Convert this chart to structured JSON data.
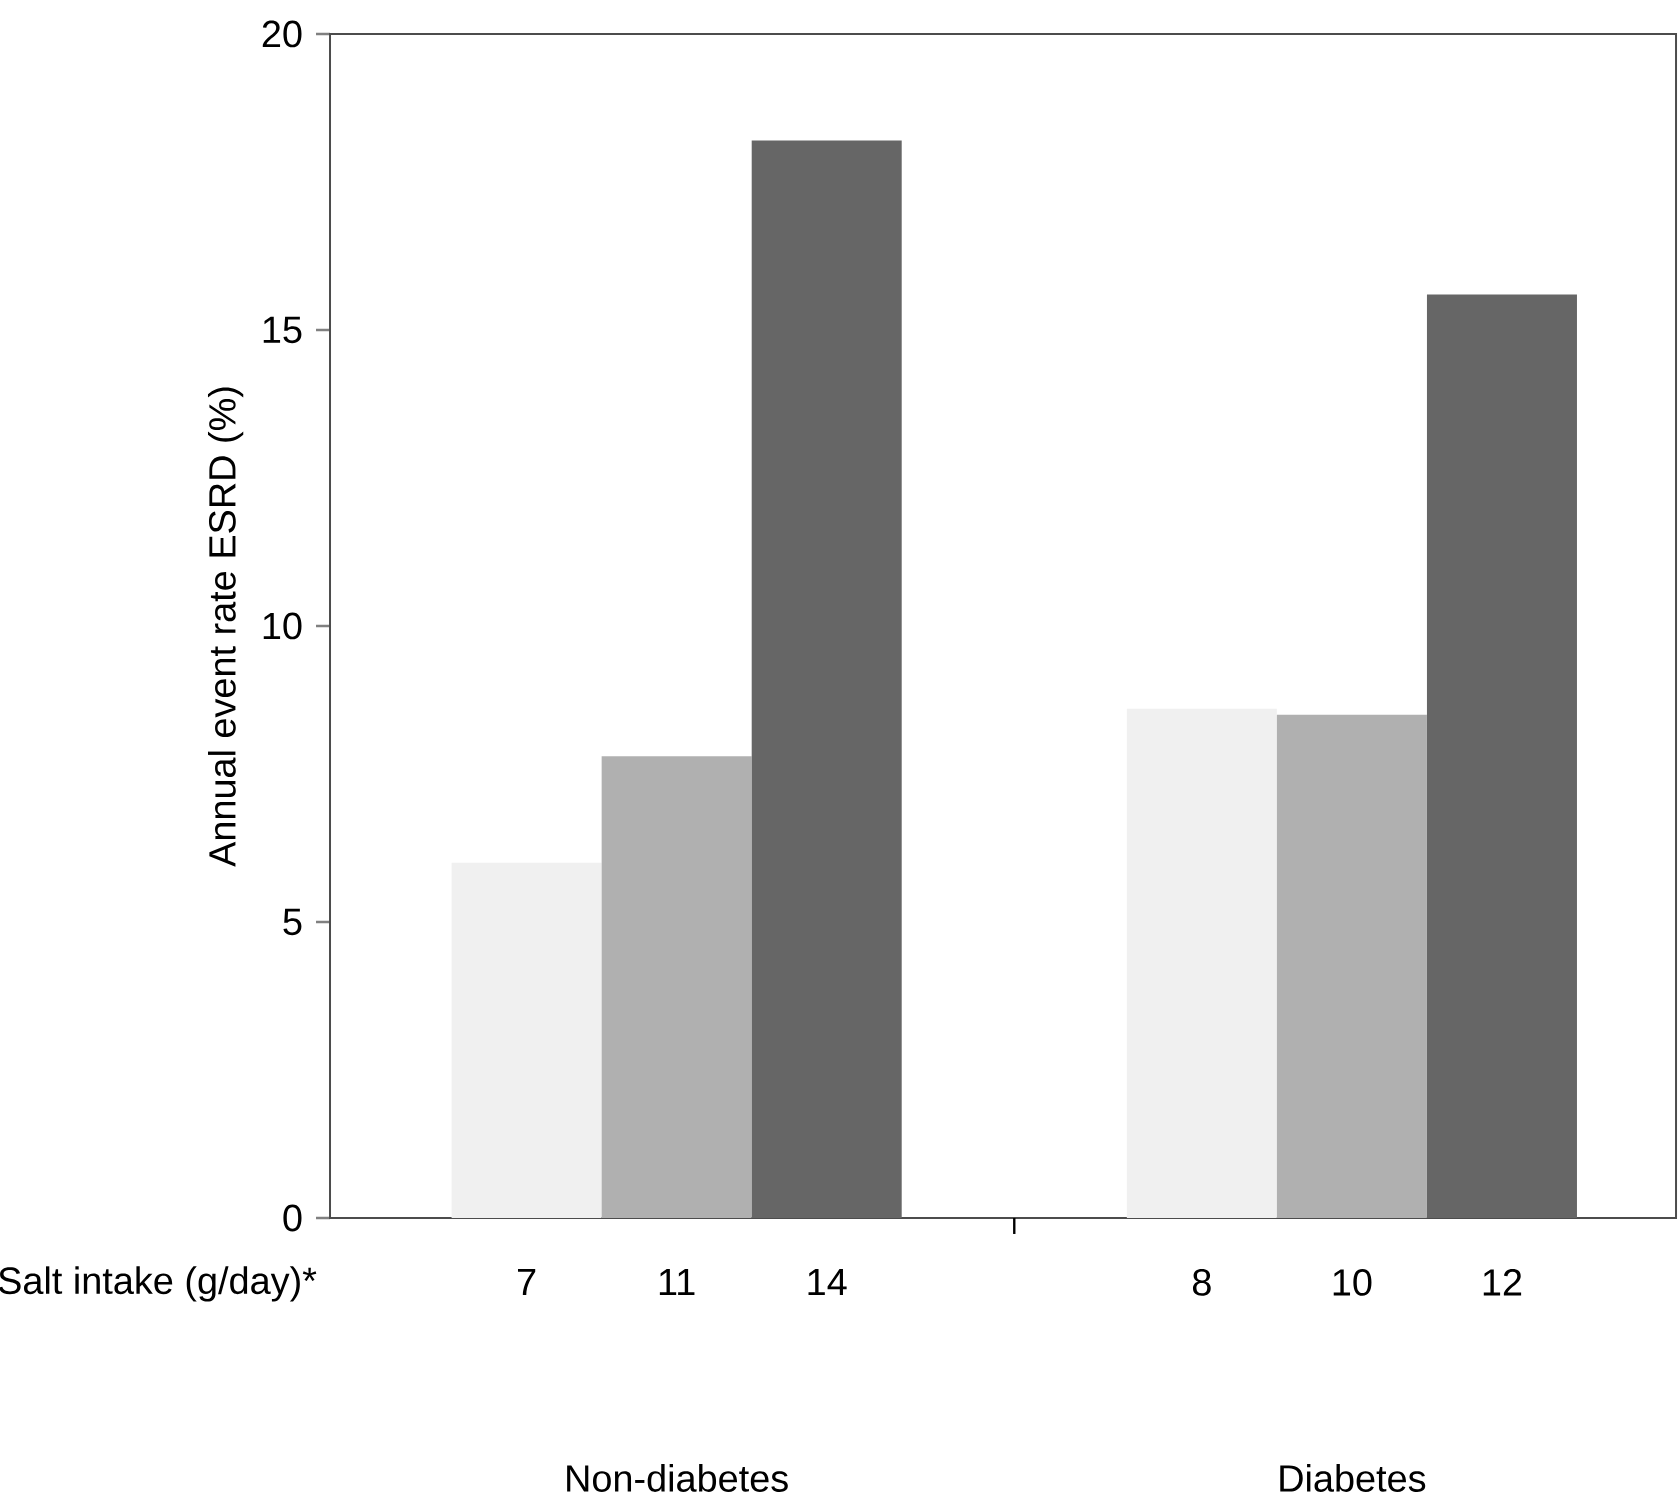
{
  "chart_data": {
    "type": "bar",
    "ylabel": "Annual event rate ESRD (%)",
    "categories": [
      "7",
      "11",
      "14",
      "8",
      "10",
      "12"
    ],
    "values": [
      6.0,
      7.8,
      18.2,
      8.6,
      8.5,
      15.6
    ],
    "colors": [
      "#f0f0f0",
      "#b0b0b0",
      "#666666",
      "#f0f0f0",
      "#b0b0b0",
      "#666666"
    ],
    "ylim": [
      0,
      20
    ],
    "yticks": [
      0,
      5,
      10,
      15,
      20
    ],
    "annotations": [
      "Salt intake (g/day)*",
      "Non-diabetes",
      "Diabetes"
    ]
  }
}
